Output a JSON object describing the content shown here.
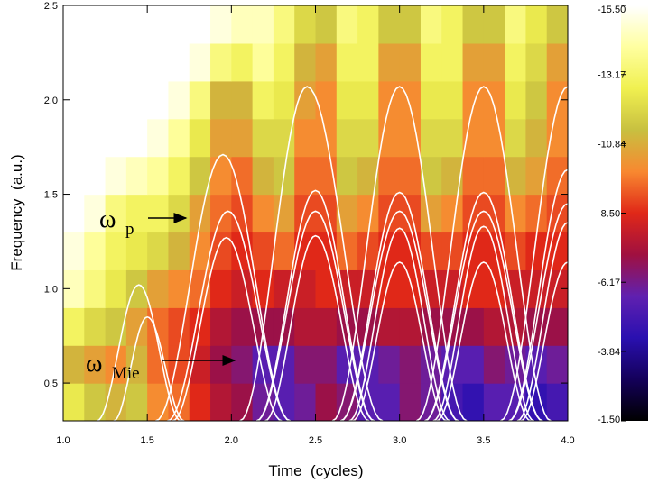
{
  "chart_data": {
    "type": "heatmap",
    "xlabel": "Time  (cycles)",
    "ylabel": "Frequency  (a.u.)",
    "xlim": [
      1.0,
      4.0
    ],
    "ylim": [
      0.3,
      2.5
    ],
    "xticks": [
      {
        "value": 1.0,
        "label": "1.0"
      },
      {
        "value": 1.5,
        "label": "1.5"
      },
      {
        "value": 2.0,
        "label": "2.0"
      },
      {
        "value": 2.5,
        "label": "2.5"
      },
      {
        "value": 3.0,
        "label": "3.0"
      },
      {
        "value": 3.5,
        "label": "3.5"
      },
      {
        "value": 4.0,
        "label": "4.0"
      }
    ],
    "yticks": [
      0.5,
      {
        "value": 1.0,
        "label": "1.0"
      },
      1.5,
      {
        "value": 2.0,
        "label": "2.0"
      },
      2.5
    ],
    "xbins": [
      1.0,
      1.125,
      1.25,
      1.375,
      1.5,
      1.625,
      1.75,
      1.875,
      2.0,
      2.125,
      2.25,
      2.375,
      2.5,
      2.625,
      2.75,
      2.875,
      3.0,
      3.125,
      3.25,
      3.375,
      3.5,
      3.625,
      3.75,
      3.875,
      4.0
    ],
    "ybins": [
      0.3,
      0.5,
      0.7,
      0.9,
      1.1,
      1.3,
      1.5,
      1.7,
      1.9,
      2.1,
      2.3,
      2.5
    ],
    "values": [
      [
        -12.5,
        -11.5,
        -11,
        -11.5,
        -10,
        -9.5,
        -8.5,
        -7.5,
        -7,
        -6,
        -5.5,
        -6,
        -7,
        -6.5,
        -5.5,
        -5.5,
        -6.5,
        -6,
        -5,
        -4.5,
        -5.5,
        -5.5,
        -4.5,
        -5
      ],
      [
        -11,
        -10.5,
        -10,
        -11,
        -9.5,
        -9,
        -8,
        -7,
        -6.5,
        -5.5,
        -5.5,
        -6.5,
        -6.5,
        -5.5,
        -5.5,
        -6,
        -6.5,
        -6,
        -5.5,
        -5.5,
        -6.5,
        -6,
        -5.5,
        -6
      ],
      [
        -13,
        -12,
        -11.5,
        -10.5,
        -9.5,
        -9,
        -8.5,
        -7.5,
        -7,
        -7,
        -7,
        -7.5,
        -7.5,
        -7,
        -7,
        -7.5,
        -7.5,
        -7,
        -7,
        -7,
        -7.5,
        -7.5,
        -7,
        -7
      ],
      [
        -14.5,
        -13.5,
        -12.5,
        -11.5,
        -10.5,
        -10,
        -9.5,
        -8.5,
        -8,
        -8.5,
        -8,
        -8,
        -8.5,
        -8,
        -8,
        -8.5,
        -8.5,
        -8,
        -8,
        -8.5,
        -8.5,
        -8,
        -8,
        -8
      ],
      [
        -15,
        -14,
        -13,
        -12.5,
        -12,
        -11,
        -10,
        -9,
        -8.5,
        -9,
        -9.5,
        -8.5,
        -8.5,
        -9.5,
        -9,
        -8.5,
        -8.5,
        -9,
        -9,
        -8.5,
        -8.5,
        -9,
        -8.5,
        -8.5
      ],
      [
        -15.5,
        -15,
        -13.5,
        -13,
        -13,
        -12,
        -10.5,
        -9.5,
        -9,
        -10,
        -10.5,
        -9,
        -9,
        -10.5,
        -10,
        -9,
        -9,
        -10.5,
        -10,
        -9,
        -9,
        -10,
        -9.5,
        -9
      ],
      [
        -15.5,
        -15.5,
        -15,
        -14.5,
        -14,
        -13,
        -11.5,
        -10,
        -9.5,
        -11,
        -11.5,
        -9.5,
        -9.5,
        -11.5,
        -11,
        -9.5,
        -9.5,
        -11.5,
        -11,
        -9.5,
        -9.5,
        -11,
        -10.5,
        -9.5
      ],
      [
        -15.5,
        -15.5,
        -15.5,
        -15.5,
        -15,
        -14,
        -12.5,
        -10.5,
        -10.5,
        -12,
        -12,
        -10,
        -10,
        -12,
        -12,
        -10,
        -10,
        -12,
        -12,
        -10,
        -10,
        -12,
        -11,
        -10
      ],
      [
        -15.5,
        -15.5,
        -15.5,
        -15.5,
        -15.5,
        -15,
        -13.5,
        -11,
        -11,
        -13,
        -12.5,
        -10.5,
        -10,
        -12.5,
        -12.5,
        -10,
        -10,
        -12.5,
        -12.5,
        -10,
        -10,
        -12.5,
        -11.5,
        -10
      ],
      [
        -15.5,
        -15.5,
        -15.5,
        -15.5,
        -15.5,
        -15.5,
        -15,
        -13.5,
        -13,
        -14,
        -13,
        -11,
        -10.5,
        -13,
        -13,
        -10.5,
        -10.5,
        -13,
        -13,
        -10.5,
        -10.5,
        -13,
        -12,
        -10.5
      ],
      [
        -15.5,
        -15.5,
        -15.5,
        -15.5,
        -15.5,
        -15.5,
        -15.5,
        -15,
        -14.5,
        -14.5,
        -13.5,
        -12,
        -11.5,
        -13.5,
        -13,
        -11.5,
        -11.5,
        -13.5,
        -13,
        -11.5,
        -11.5,
        -13.5,
        -12.5,
        -11.5
      ]
    ],
    "clim": [
      -1.5,
      -15.5
    ],
    "colorbar_ticks": [
      {
        "value": -15.5,
        "label": "-15.50"
      },
      -13.17,
      -10.84,
      {
        "value": -8.5,
        "label": "-8.50"
      },
      -6.17,
      -3.84,
      {
        "value": -1.5,
        "label": "-1.50"
      }
    ],
    "colormap": [
      "#000000",
      "#14005a",
      "#2a10b0",
      "#6020b0",
      "#a01040",
      "#e02818",
      "#f88830",
      "#c8c040",
      "#f0f050",
      "#ffffa0",
      "#ffffff"
    ],
    "curve_color": "#ffffff",
    "curves": [
      {
        "x0": 1.2,
        "xp": 1.45,
        "x1": 1.7,
        "peak": 1.02
      },
      {
        "x0": 1.3,
        "xp": 1.5,
        "x1": 1.72,
        "peak": 0.85
      },
      {
        "x0": 1.55,
        "xp": 1.95,
        "x1": 2.35,
        "peak": 1.71
      },
      {
        "x0": 1.62,
        "xp": 1.98,
        "x1": 2.35,
        "peak": 1.41
      },
      {
        "x0": 1.65,
        "xp": 1.97,
        "x1": 2.3,
        "peak": 1.27
      },
      {
        "x0": 2.05,
        "xp": 2.45,
        "x1": 2.9,
        "peak": 2.07
      },
      {
        "x0": 2.15,
        "xp": 2.5,
        "x1": 2.85,
        "peak": 1.52
      },
      {
        "x0": 2.15,
        "xp": 2.5,
        "x1": 2.85,
        "peak": 1.41
      },
      {
        "x0": 2.2,
        "xp": 2.5,
        "x1": 2.82,
        "peak": 1.28
      },
      {
        "x0": 2.6,
        "xp": 3.0,
        "x1": 3.4,
        "peak": 2.07
      },
      {
        "x0": 2.65,
        "xp": 3.0,
        "x1": 3.35,
        "peak": 1.51
      },
      {
        "x0": 2.65,
        "xp": 3.0,
        "x1": 3.35,
        "peak": 1.41
      },
      {
        "x0": 2.7,
        "xp": 3.0,
        "x1": 3.3,
        "peak": 1.32
      },
      {
        "x0": 2.72,
        "xp": 3.0,
        "x1": 3.28,
        "peak": 1.14
      },
      {
        "x0": 3.1,
        "xp": 3.5,
        "x1": 3.9,
        "peak": 2.07
      },
      {
        "x0": 3.15,
        "xp": 3.5,
        "x1": 3.85,
        "peak": 1.51
      },
      {
        "x0": 3.15,
        "xp": 3.5,
        "x1": 3.85,
        "peak": 1.41
      },
      {
        "x0": 3.2,
        "xp": 3.5,
        "x1": 3.8,
        "peak": 1.33
      },
      {
        "x0": 3.22,
        "xp": 3.5,
        "x1": 3.78,
        "peak": 1.14
      },
      {
        "x0": 3.6,
        "xp": 4.0,
        "x1": 4.4,
        "peak": 2.07
      },
      {
        "x0": 3.65,
        "xp": 4.0,
        "x1": 4.35,
        "peak": 1.63
      },
      {
        "x0": 3.65,
        "xp": 4.0,
        "x1": 4.35,
        "peak": 1.45
      },
      {
        "x0": 3.7,
        "xp": 4.0,
        "x1": 4.3,
        "peak": 1.35
      },
      {
        "x0": 3.72,
        "xp": 4.0,
        "x1": 4.28,
        "peak": 1.14
      }
    ],
    "annotations": [
      {
        "text": "ω",
        "sub": "p"
      },
      {
        "text": "ω",
        "sub": "Mie"
      }
    ]
  }
}
